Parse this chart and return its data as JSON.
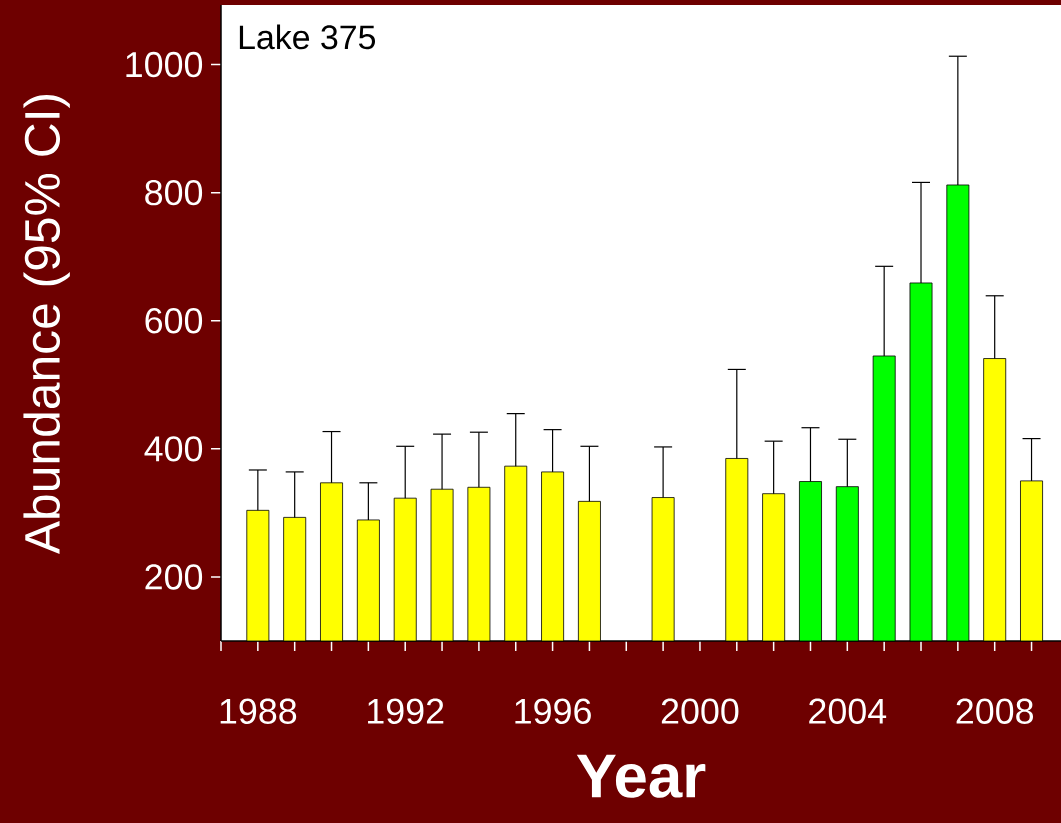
{
  "chart_data": {
    "type": "bar",
    "xlabel": "Year",
    "ylabel": "Abundance (95% CI)",
    "annotations": [
      "Lake 375"
    ],
    "x": [
      1988,
      1989,
      1990,
      1991,
      1992,
      1993,
      1994,
      1995,
      1996,
      1997,
      1998,
      1999,
      2000,
      2001,
      2002,
      2003,
      2004,
      2005,
      2006,
      2007,
      2008,
      2009
    ],
    "values": [
      304,
      293,
      347,
      289,
      323,
      337,
      340,
      373,
      364,
      318,
      null,
      324,
      null,
      385,
      330,
      349,
      341,
      545,
      659,
      812,
      541,
      350
    ],
    "errors": [
      63,
      71,
      80,
      58,
      81,
      86,
      86,
      82,
      66,
      86,
      null,
      79,
      null,
      139,
      82,
      84,
      74,
      140,
      157,
      201,
      98,
      66
    ],
    "colors": [
      "#ffff00",
      "#ffff00",
      "#ffff00",
      "#ffff00",
      "#ffff00",
      "#ffff00",
      "#ffff00",
      "#ffff00",
      "#ffff00",
      "#ffff00",
      "#ffff00",
      "#ffff00",
      "#ffff00",
      "#ffff00",
      "#ffff00",
      "#00ff00",
      "#00ff00",
      "#00ff00",
      "#00ff00",
      "#00ff00",
      "#ffff00",
      "#ffff00"
    ],
    "xlim": [
      1987,
      2009.8
    ],
    "ylim": [
      100,
      1093
    ],
    "xticks": [
      {
        "value": 1987,
        "label": null
      },
      1988,
      {
        "value": 1989,
        "label": null
      },
      {
        "value": 1990,
        "label": null
      },
      {
        "value": 1991,
        "label": null
      },
      1992,
      {
        "value": 1993,
        "label": null
      },
      {
        "value": 1994,
        "label": null
      },
      {
        "value": 1995,
        "label": null
      },
      1996,
      {
        "value": 1997,
        "label": null
      },
      {
        "value": 1998,
        "label": null
      },
      {
        "value": 1999,
        "label": null
      },
      2000,
      {
        "value": 2001,
        "label": null
      },
      {
        "value": 2002,
        "label": null
      },
      {
        "value": 2003,
        "label": null
      },
      2004,
      {
        "value": 2005,
        "label": null
      },
      {
        "value": 2006,
        "label": null
      },
      {
        "value": 2007,
        "label": null
      },
      2008,
      {
        "value": 2009,
        "label": null
      }
    ],
    "yticks": [
      200,
      400,
      600,
      800,
      1000
    ],
    "grid": false
  }
}
